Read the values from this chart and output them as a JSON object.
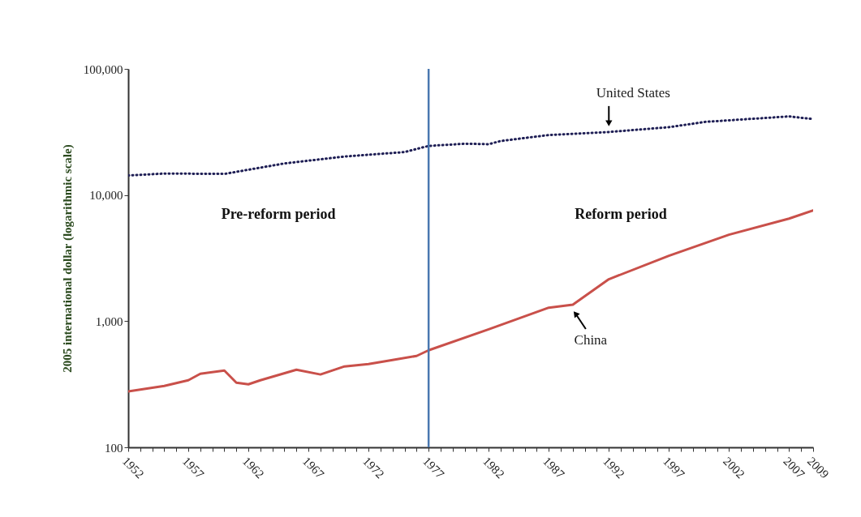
{
  "chart_data": {
    "type": "line",
    "ylabel": "2005 international dollar (logarithmic scale)",
    "x": [
      1952,
      1955,
      1957,
      1958,
      1960,
      1961,
      1962,
      1963,
      1966,
      1968,
      1970,
      1972,
      1974,
      1976,
      1977,
      1982,
      1987,
      1989,
      1992,
      1997,
      2002,
      2007,
      2009
    ],
    "series": [
      {
        "name": "United States",
        "color": "#1f1f55",
        "line_style": "dotted",
        "x": [
          1952,
          1955,
          1960,
          1965,
          1970,
          1975,
          1977,
          1980,
          1982,
          1983,
          1987,
          1992,
          1997,
          2000,
          2007,
          2009
        ],
        "values": [
          14300,
          14800,
          14700,
          17800,
          20200,
          21900,
          24500,
          25500,
          25300,
          26800,
          29900,
          31600,
          34500,
          38000,
          42000,
          40000
        ]
      },
      {
        "name": "China",
        "color": "#c9504a",
        "line_style": "solid",
        "values": [
          277,
          307,
          340,
          383,
          406,
          325,
          316,
          340,
          412,
          378,
          438,
          457,
          493,
          530,
          588,
          862,
          1280,
          1350,
          2150,
          3300,
          4850,
          6500,
          7550
        ]
      }
    ],
    "log": true,
    "ylim": [
      100,
      100000
    ],
    "yticks": [
      {
        "value": 100,
        "label": "100"
      },
      {
        "value": 1000,
        "label": "1,000"
      },
      {
        "value": 10000,
        "label": "10,000"
      },
      {
        "value": 100000,
        "label": "100,000"
      }
    ],
    "xlim": [
      1952,
      2009
    ],
    "xticks": [
      1952,
      {
        "value": 1953,
        "label": null
      },
      {
        "value": 1954,
        "label": null
      },
      {
        "value": 1955,
        "label": null
      },
      {
        "value": 1956,
        "label": null
      },
      1957,
      {
        "value": 1958,
        "label": null
      },
      {
        "value": 1959,
        "label": null
      },
      {
        "value": 1960,
        "label": null
      },
      {
        "value": 1961,
        "label": null
      },
      1962,
      {
        "value": 1963,
        "label": null
      },
      {
        "value": 1964,
        "label": null
      },
      {
        "value": 1965,
        "label": null
      },
      {
        "value": 1966,
        "label": null
      },
      1967,
      {
        "value": 1968,
        "label": null
      },
      {
        "value": 1969,
        "label": null
      },
      {
        "value": 1970,
        "label": null
      },
      {
        "value": 1971,
        "label": null
      },
      1972,
      {
        "value": 1973,
        "label": null
      },
      {
        "value": 1974,
        "label": null
      },
      {
        "value": 1975,
        "label": null
      },
      {
        "value": 1976,
        "label": null
      },
      1977,
      {
        "value": 1978,
        "label": null
      },
      {
        "value": 1979,
        "label": null
      },
      {
        "value": 1980,
        "label": null
      },
      {
        "value": 1981,
        "label": null
      },
      1982,
      {
        "value": 1983,
        "label": null
      },
      {
        "value": 1984,
        "label": null
      },
      {
        "value": 1985,
        "label": null
      },
      {
        "value": 1986,
        "label": null
      },
      1987,
      {
        "value": 1988,
        "label": null
      },
      {
        "value": 1989,
        "label": null
      },
      {
        "value": 1990,
        "label": null
      },
      {
        "value": 1991,
        "label": null
      },
      1992,
      {
        "value": 1993,
        "label": null
      },
      {
        "value": 1994,
        "label": null
      },
      {
        "value": 1995,
        "label": null
      },
      {
        "value": 1996,
        "label": null
      },
      1997,
      {
        "value": 1998,
        "label": null
      },
      {
        "value": 1999,
        "label": null
      },
      {
        "value": 2000,
        "label": null
      },
      {
        "value": 2001,
        "label": null
      },
      2002,
      {
        "value": 2003,
        "label": null
      },
      {
        "value": 2004,
        "label": null
      },
      {
        "value": 2005,
        "label": null
      },
      {
        "value": 2006,
        "label": null
      },
      2007,
      {
        "value": 2008,
        "label": null
      },
      2009
    ],
    "ref_lines": [
      {
        "axis": "x",
        "value": 1977,
        "color": "#4a78b0"
      }
    ],
    "annotations": [
      "Pre-reform period",
      "Reform period"
    ],
    "grid": false,
    "legend": false
  }
}
